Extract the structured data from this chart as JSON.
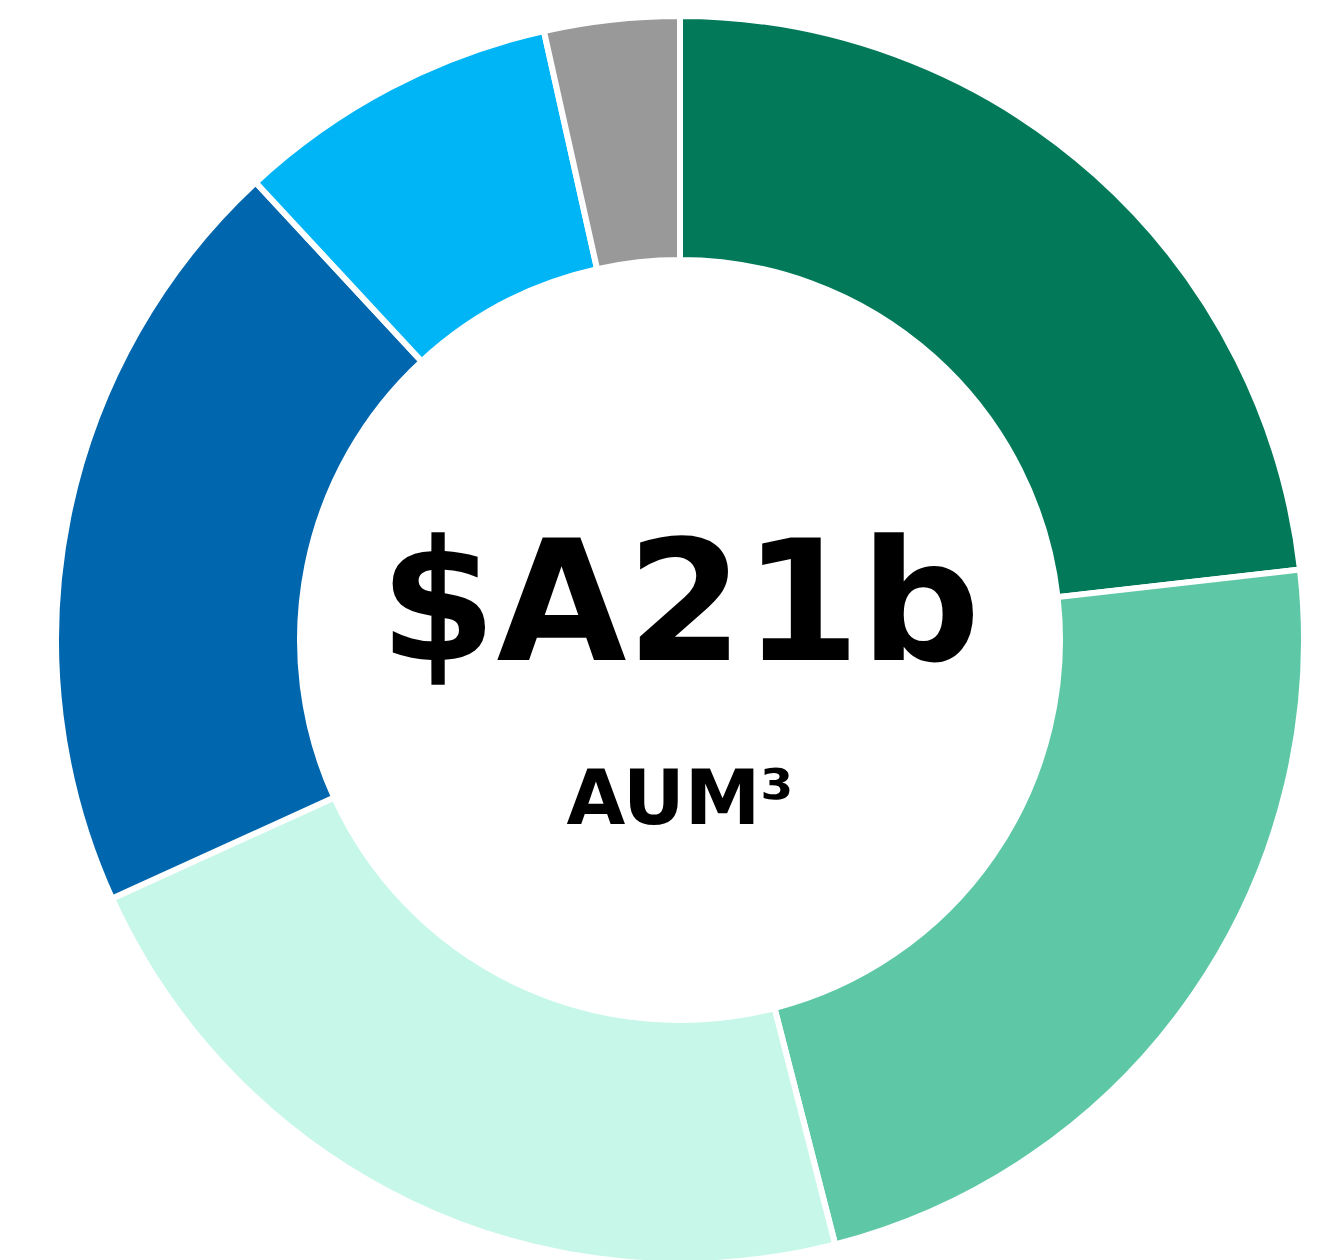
{
  "chart_data": {
    "type": "donut",
    "categories": [
      null,
      null,
      null,
      null,
      null,
      null
    ],
    "values": [
      23.2,
      22.8,
      22.2,
      19.9,
      8.4,
      3.5
    ],
    "colors": [
      "#027a5a",
      "#5ec8a6",
      "#c7f7e9",
      "#0066ad",
      "#00b5f6",
      "#999999"
    ],
    "annotations": [
      "$A21b",
      "AUM³"
    ]
  }
}
